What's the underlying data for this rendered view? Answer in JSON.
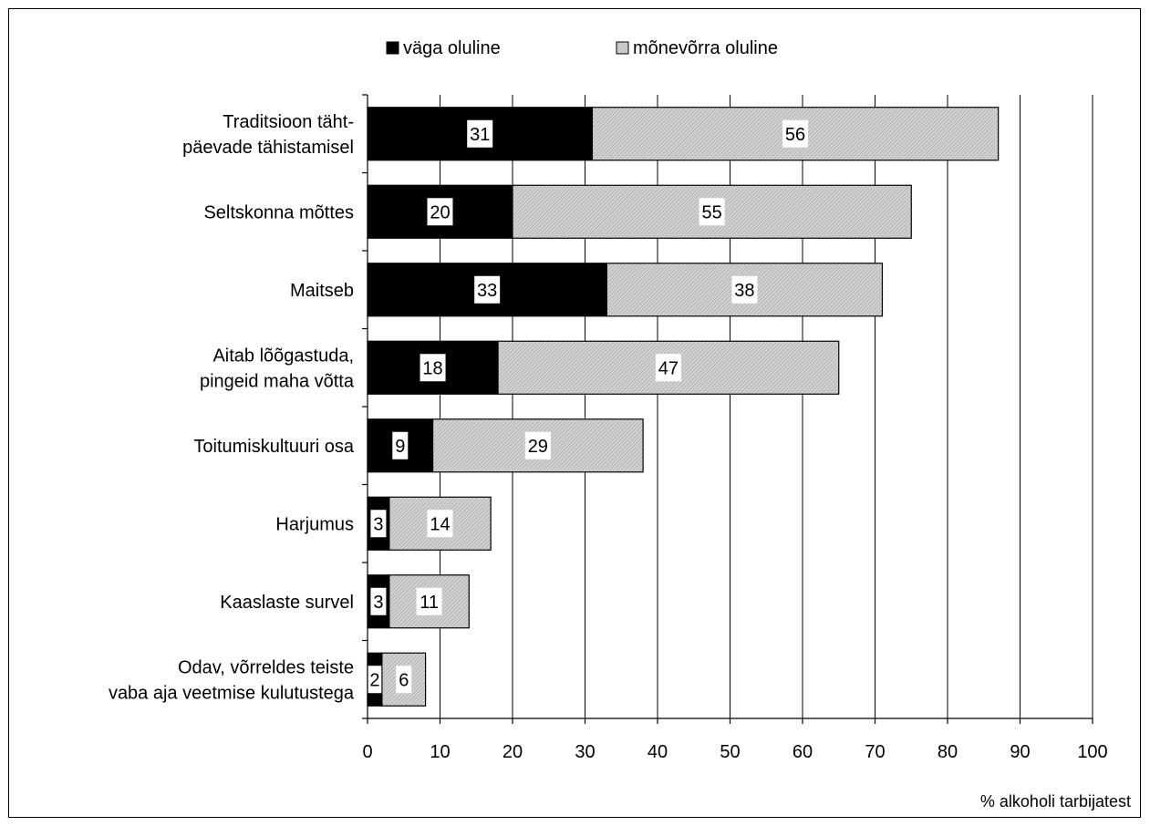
{
  "chart_data": {
    "type": "bar",
    "orientation": "horizontal",
    "stacked": true,
    "categories": [
      [
        "Traditsioon täht-",
        "päevade tähistamisel"
      ],
      [
        "Seltskonna mõttes"
      ],
      [
        "Maitseb"
      ],
      [
        "Aitab lõõgastuda,",
        "pingeid maha võtta"
      ],
      [
        "Toitumiskultuuri osa"
      ],
      [
        "Harjumus"
      ],
      [
        "Kaaslaste survel"
      ],
      [
        "Odav, võrreldes teiste",
        "vaba aja veetmise kulutustega"
      ]
    ],
    "series": [
      {
        "name": "väga oluline",
        "color": "#000000",
        "values": [
          31,
          20,
          33,
          18,
          9,
          3,
          3,
          2
        ]
      },
      {
        "name": "mõnevõrra oluline",
        "color": "#c8c8c8",
        "values": [
          56,
          55,
          38,
          47,
          29,
          14,
          11,
          6
        ]
      }
    ],
    "xlabel": "% alkoholi tarbijatest",
    "xlim": [
      0,
      100
    ],
    "xticks": [
      0,
      10,
      20,
      30,
      40,
      50,
      60,
      70,
      80,
      90,
      100
    ],
    "grid": "vertical",
    "legend": "top"
  }
}
